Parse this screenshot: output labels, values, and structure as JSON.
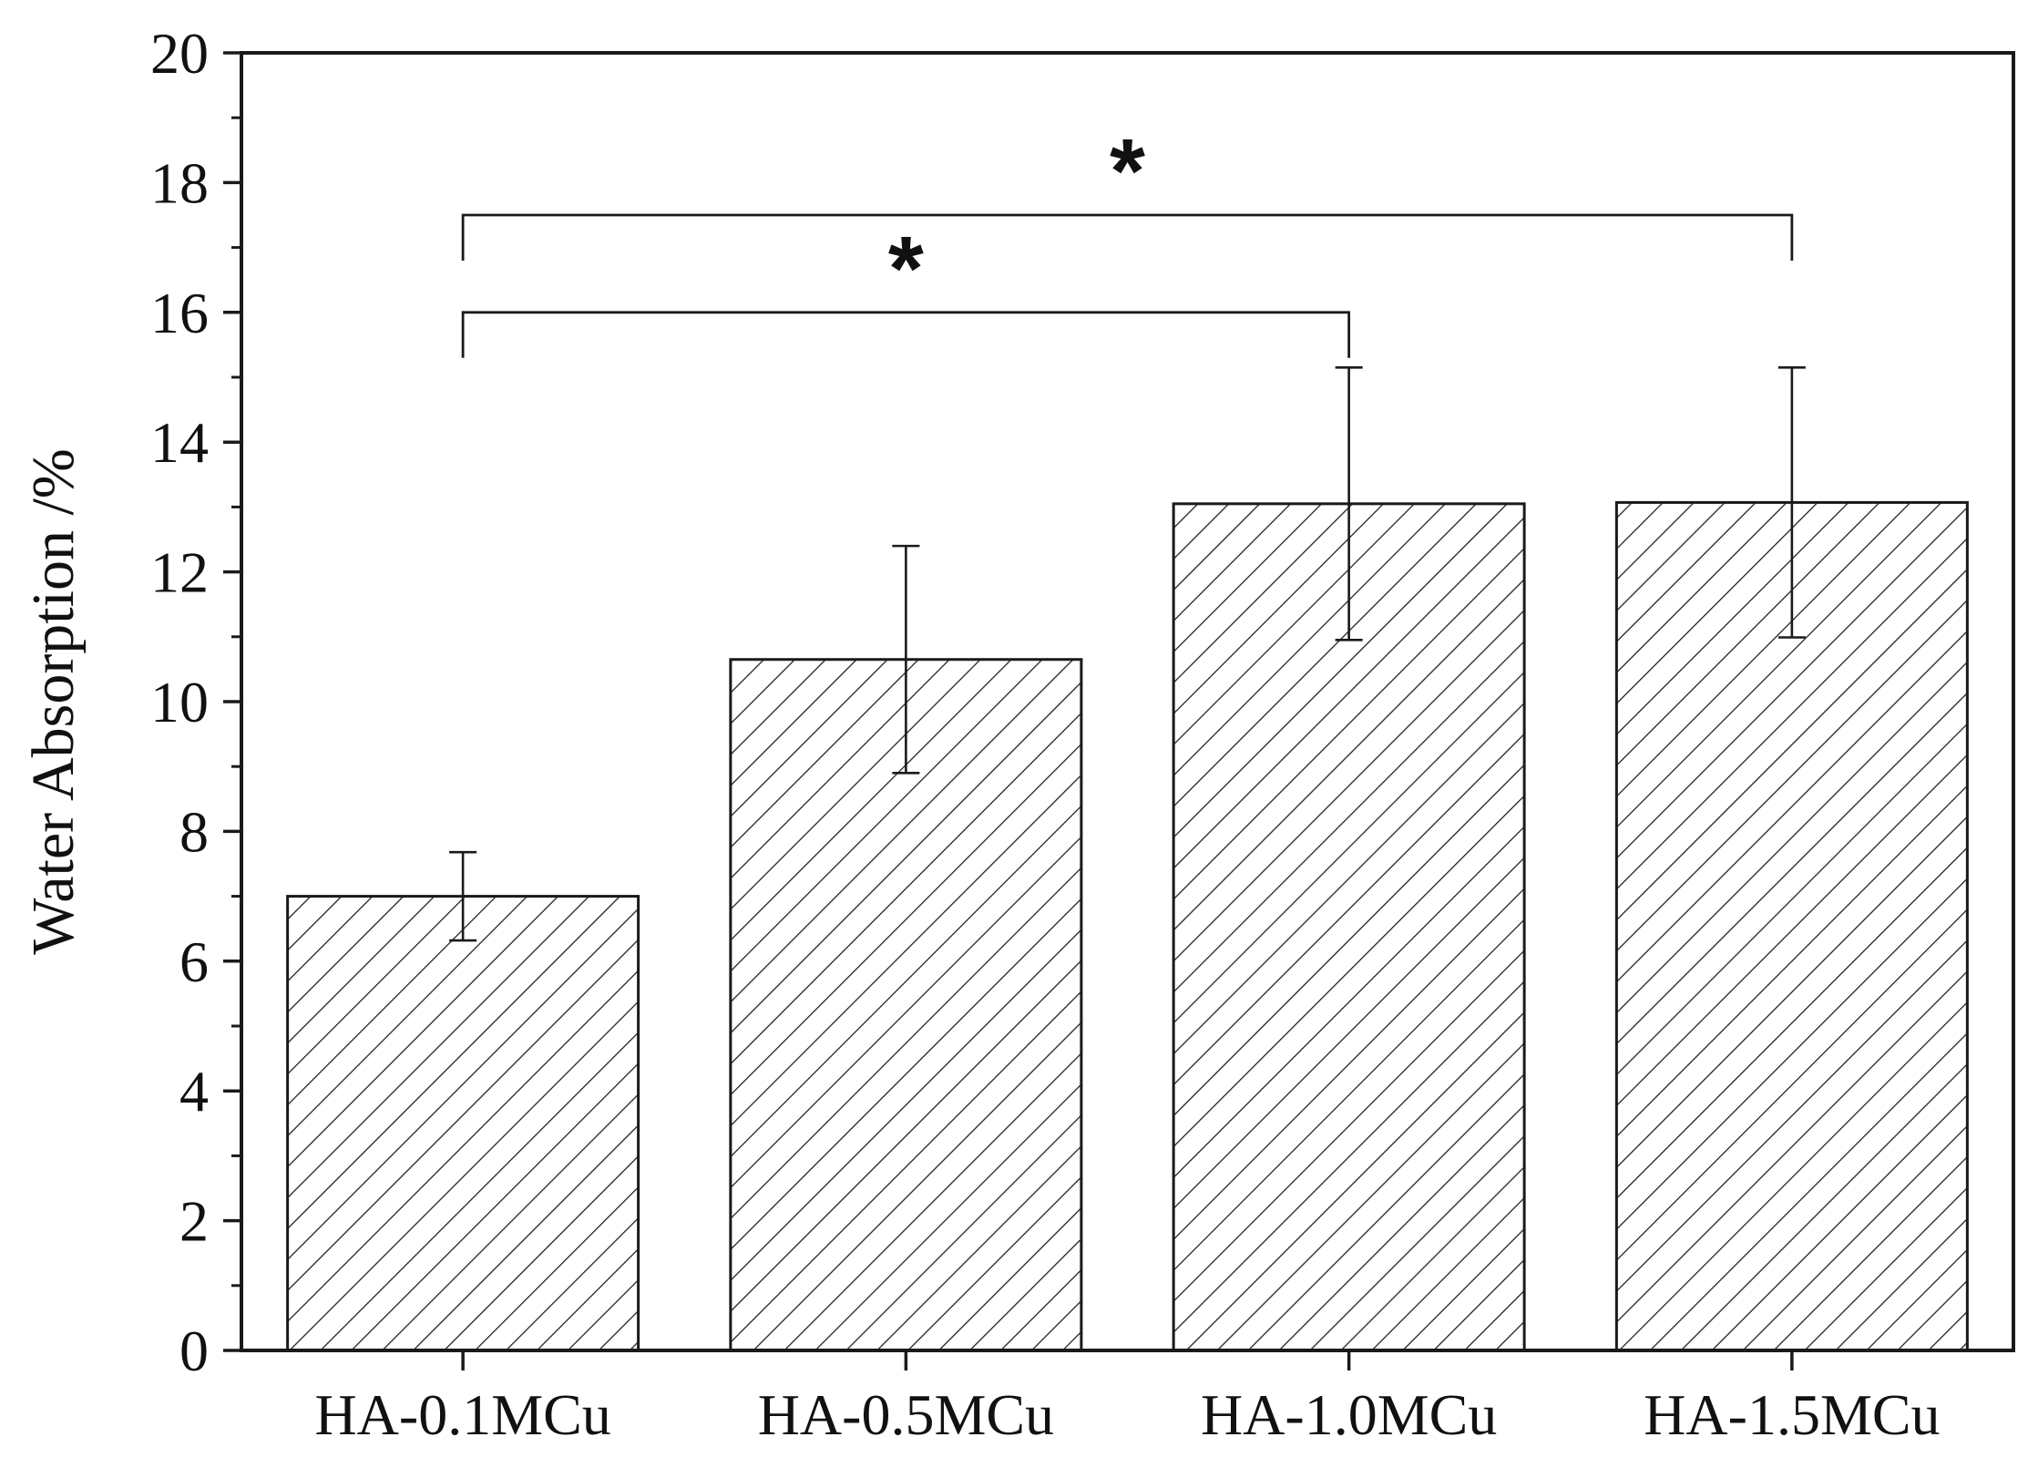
{
  "chart_data": {
    "type": "bar",
    "categories": [
      "HA-0.1MCu",
      "HA-0.5MCu",
      "HA-1.0MCu",
      "HA-1.5MCu"
    ],
    "values": [
      7.0,
      10.65,
      13.05,
      13.07
    ],
    "errors": [
      0.68,
      1.75,
      2.1,
      2.08
    ],
    "ylabel": "Water Absorption /%",
    "xlabel": "",
    "ylim": [
      0,
      20
    ],
    "yticks": [
      0,
      2,
      4,
      6,
      8,
      10,
      12,
      14,
      16,
      18,
      20
    ],
    "grid": false,
    "bar_fill": "hatched",
    "significance": [
      {
        "from": 0,
        "to": 2,
        "y": 16.0,
        "label": "*"
      },
      {
        "from": 0,
        "to": 3,
        "y": 17.5,
        "label": "*"
      }
    ]
  },
  "colors": {
    "ink": "#1a1a1a",
    "background": "#ffffff"
  }
}
